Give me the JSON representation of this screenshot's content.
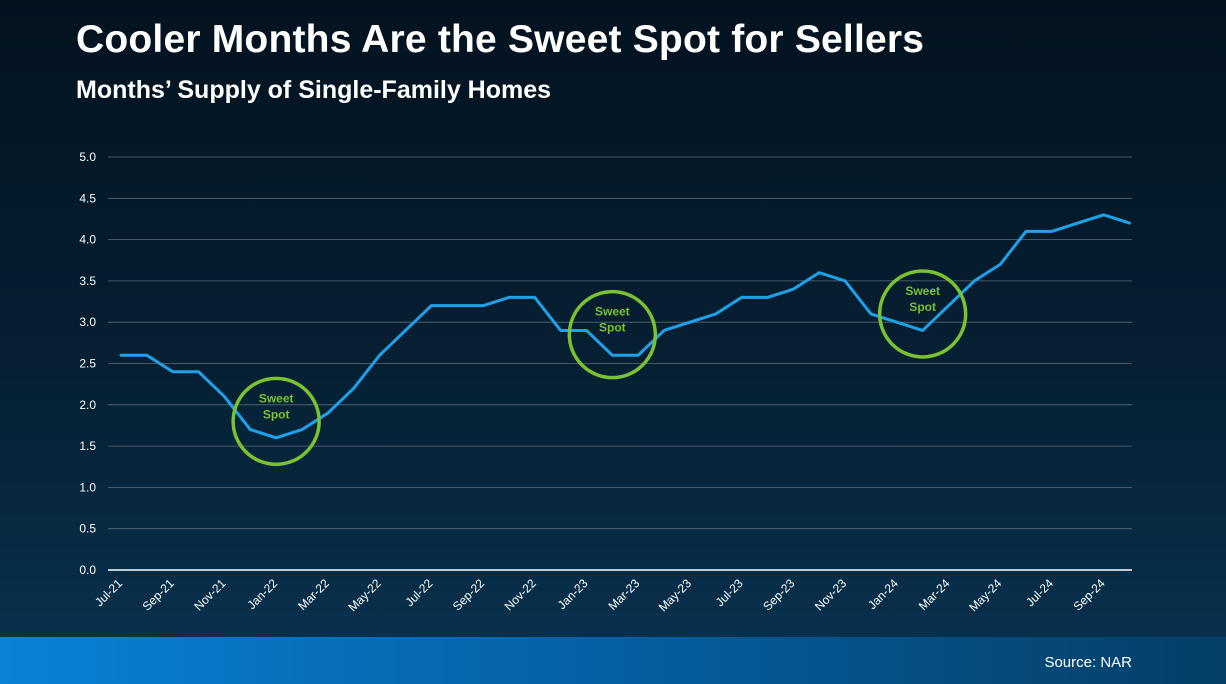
{
  "slide": {
    "title": "Cooler Months Are the Sweet Spot for Sellers",
    "subtitle": "Months’ Supply of Single-Family Homes",
    "source": "Source: NAR"
  },
  "colors": {
    "line": "#1ea1e8",
    "gridline": "#5a6b78",
    "axis": "#ffffff",
    "highlight": "#7ac231",
    "text": "#ffffff"
  },
  "chart_data": {
    "type": "line",
    "title": "",
    "xlabel": "",
    "ylabel": "",
    "ylim": [
      0,
      5
    ],
    "y_ticks": [
      "0.0",
      "0.5",
      "1.0",
      "1.5",
      "2.0",
      "2.5",
      "3.0",
      "3.5",
      "4.0",
      "4.5",
      "5.0"
    ],
    "grid": true,
    "x": [
      "Jul-21",
      "Aug-21",
      "Sep-21",
      "Oct-21",
      "Nov-21",
      "Dec-21",
      "Jan-22",
      "Feb-22",
      "Mar-22",
      "Apr-22",
      "May-22",
      "Jun-22",
      "Jul-22",
      "Aug-22",
      "Sep-22",
      "Oct-22",
      "Nov-22",
      "Dec-22",
      "Jan-23",
      "Feb-23",
      "Mar-23",
      "Apr-23",
      "May-23",
      "Jun-23",
      "Jul-23",
      "Aug-23",
      "Sep-23",
      "Oct-23",
      "Nov-23",
      "Dec-23",
      "Jan-24",
      "Feb-24",
      "Mar-24",
      "Apr-24",
      "May-24",
      "Jun-24",
      "Jul-24",
      "Aug-24",
      "Sep-24",
      "Oct-24"
    ],
    "x_tick_labels": [
      "Jul-21",
      "Sep-21",
      "Nov-21",
      "Jan-22",
      "Mar-22",
      "May-22",
      "Jul-22",
      "Sep-22",
      "Nov-22",
      "Jan-23",
      "Mar-23",
      "May-23",
      "Jul-23",
      "Sep-23",
      "Nov-23",
      "Jan-24",
      "Mar-24",
      "May-24",
      "Jul-24",
      "Sep-24"
    ],
    "series": [
      {
        "values": [
          2.6,
          2.6,
          2.4,
          2.4,
          2.1,
          1.7,
          1.6,
          1.7,
          1.9,
          2.2,
          2.6,
          2.9,
          3.2,
          3.2,
          3.2,
          3.3,
          3.3,
          2.9,
          2.9,
          2.6,
          2.6,
          2.9,
          3.0,
          3.1,
          3.3,
          3.3,
          3.4,
          3.6,
          3.5,
          3.1,
          3.0,
          2.9,
          3.2,
          3.5,
          3.7,
          4.1,
          4.1,
          4.2,
          4.3,
          4.2
        ]
      }
    ],
    "annotations": [
      {
        "text_line1": "Sweet",
        "text_line2": "Spot",
        "x": "Jan-22",
        "y": 1.8
      },
      {
        "text_line1": "Sweet",
        "text_line2": "Spot",
        "x": "Feb-23",
        "y": 2.85
      },
      {
        "text_line1": "Sweet",
        "text_line2": "Spot",
        "x": "Feb-24",
        "y": 3.1
      }
    ]
  }
}
